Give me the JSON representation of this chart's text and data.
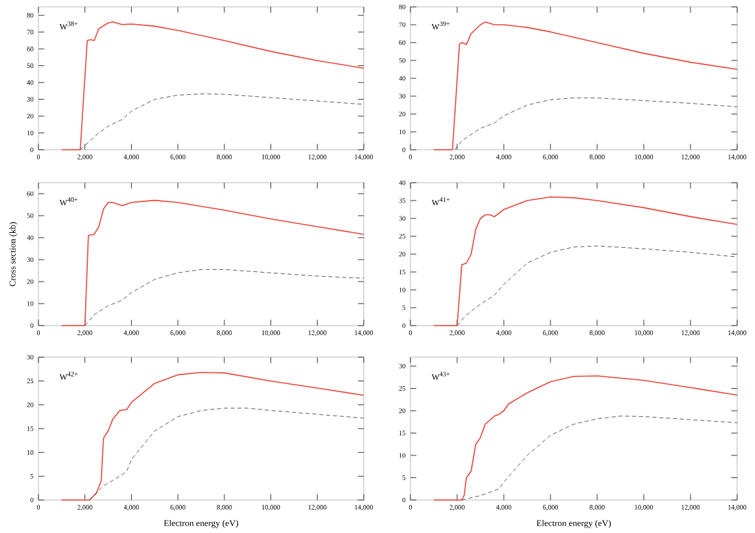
{
  "chart_data": [
    {
      "type": "line",
      "annotations": [
        "W$^{38+}$"
      ],
      "xlim": [
        0,
        14000
      ],
      "ylim": [
        0,
        85
      ],
      "xticks": [
        0,
        {
          "value": 2000,
          "label": "2,000"
        },
        {
          "value": 4000,
          "label": "4,000"
        },
        {
          "value": 6000,
          "label": "6,000"
        },
        {
          "value": 8000,
          "label": "8,000"
        },
        {
          "value": 10000,
          "label": "10,000"
        },
        {
          "value": 12000,
          "label": "12,000"
        },
        {
          "value": 14000,
          "label": "14,000"
        }
      ],
      "yticks": [
        0,
        10,
        20,
        30,
        40,
        50,
        60,
        70,
        80
      ],
      "series": [
        {
          "color": "#e8473c",
          "line_style": "solid",
          "x": [
            1000,
            1800,
            2100,
            2250,
            2400,
            2600,
            3000,
            3200,
            3600,
            4000,
            5000,
            6000,
            8000,
            10000,
            12000,
            14000
          ],
          "values": [
            0,
            0,
            65,
            65.5,
            65,
            72,
            75.5,
            76,
            74.5,
            74.8,
            73.5,
            71,
            65,
            58.5,
            53,
            48.5
          ]
        },
        {
          "color": "#333333",
          "line_style": "dashed",
          "x": [
            1800,
            2200,
            2600,
            3000,
            3600,
            4000,
            5000,
            6000,
            7000,
            8000,
            10000,
            12000,
            14000
          ],
          "values": [
            0,
            5,
            10,
            14,
            18,
            23,
            30,
            32.5,
            33.2,
            33,
            31,
            29,
            27
          ]
        }
      ]
    },
    {
      "type": "line",
      "annotations": [
        "W$^{39+}$"
      ],
      "xlim": [
        0,
        14000
      ],
      "ylim": [
        0,
        80
      ],
      "xticks": [
        0,
        {
          "value": 2000,
          "label": "2,000"
        },
        {
          "value": 4000,
          "label": "4,000"
        },
        {
          "value": 6000,
          "label": "6,000"
        },
        {
          "value": 8000,
          "label": "8,000"
        },
        {
          "value": 10000,
          "label": "10,000"
        },
        {
          "value": 12000,
          "label": "12,000"
        },
        {
          "value": 14000,
          "label": "14,000"
        }
      ],
      "yticks": [
        0,
        10,
        20,
        30,
        40,
        50,
        60,
        70,
        80
      ],
      "series": [
        {
          "color": "#e8473c",
          "line_style": "solid",
          "x": [
            1000,
            1800,
            2100,
            2200,
            2400,
            2600,
            3000,
            3200,
            3600,
            4000,
            5000,
            6000,
            8000,
            10000,
            12000,
            14000
          ],
          "values": [
            0,
            0,
            59,
            60,
            59,
            65,
            70,
            71.5,
            70,
            70,
            68.5,
            66,
            60,
            54,
            49,
            45
          ]
        },
        {
          "color": "#333333",
          "line_style": "dashed",
          "x": [
            1900,
            2200,
            3000,
            3600,
            4000,
            5000,
            6000,
            7000,
            8000,
            10000,
            12000,
            14000
          ],
          "values": [
            0,
            5,
            12,
            15,
            19,
            25,
            28,
            29,
            29,
            27.5,
            26,
            24
          ]
        }
      ]
    },
    {
      "type": "line",
      "annotations": [
        "W$^{40+}$"
      ],
      "ylabel": "Cross section (kb)",
      "xlim": [
        0,
        14000
      ],
      "ylim": [
        0,
        65
      ],
      "xticks": [
        0,
        {
          "value": 2000,
          "label": "2,000"
        },
        {
          "value": 4000,
          "label": "4,000"
        },
        {
          "value": 6000,
          "label": "6,000"
        },
        {
          "value": 8000,
          "label": "8,000"
        },
        {
          "value": 10000,
          "label": "10,000"
        },
        {
          "value": 12000,
          "label": "12,000"
        },
        {
          "value": 14000,
          "label": "14,000"
        }
      ],
      "yticks": [
        0,
        10,
        20,
        30,
        40,
        50,
        60
      ],
      "series": [
        {
          "color": "#e8473c",
          "line_style": "solid",
          "x": [
            1000,
            2000,
            2150,
            2400,
            2600,
            2800,
            3000,
            3200,
            3600,
            4000,
            5000,
            6000,
            8000,
            10000,
            12000,
            14000
          ],
          "values": [
            0,
            0,
            41,
            41.5,
            45,
            53,
            56,
            56,
            54.5,
            56,
            57,
            56,
            52.5,
            48.5,
            45,
            41.5
          ]
        },
        {
          "color": "#333333",
          "line_style": "dashed",
          "x": [
            2000,
            2400,
            3000,
            3600,
            4000,
            5000,
            6000,
            7000,
            8000,
            10000,
            12000,
            14000
          ],
          "values": [
            0,
            5,
            9,
            11.5,
            15,
            21,
            24,
            25.5,
            25.5,
            24,
            22.5,
            21.5
          ]
        }
      ]
    },
    {
      "type": "line",
      "annotations": [
        "W$^{41+}$"
      ],
      "xlim": [
        0,
        14000
      ],
      "ylim": [
        0,
        40
      ],
      "xticks": [
        0,
        {
          "value": 2000,
          "label": "2,000"
        },
        {
          "value": 4000,
          "label": "4,000"
        },
        {
          "value": 6000,
          "label": "6,000"
        },
        {
          "value": 8000,
          "label": "8,000"
        },
        {
          "value": 10000,
          "label": "10,000"
        },
        {
          "value": 12000,
          "label": "12,000"
        },
        {
          "value": 14000,
          "label": "14,000"
        }
      ],
      "yticks": [
        0,
        5,
        10,
        15,
        20,
        25,
        30,
        35,
        40
      ],
      "series": [
        {
          "color": "#e8473c",
          "line_style": "solid",
          "x": [
            1000,
            2000,
            2200,
            2400,
            2600,
            2800,
            3000,
            3200,
            3400,
            3600,
            4000,
            5000,
            6000,
            7000,
            8000,
            10000,
            12000,
            14000
          ],
          "values": [
            0,
            0,
            17,
            17.5,
            20,
            27,
            30,
            31,
            31,
            30.5,
            32.5,
            35,
            36,
            35.8,
            35,
            33,
            30.5,
            28.3
          ]
        },
        {
          "color": "#333333",
          "line_style": "dashed",
          "x": [
            2000,
            2400,
            3000,
            3600,
            4000,
            5000,
            6000,
            7000,
            8000,
            10000,
            12000,
            14000
          ],
          "values": [
            0,
            3,
            6,
            8.5,
            11.5,
            17.5,
            20.5,
            22,
            22.3,
            21.5,
            20.5,
            19.2
          ]
        }
      ]
    },
    {
      "type": "line",
      "annotations": [
        "W$^{42+}$"
      ],
      "xlabel": "Electron energy (eV)",
      "xlim": [
        0,
        14000
      ],
      "ylim": [
        0,
        30
      ],
      "xticks": [
        0,
        {
          "value": 2000,
          "label": "2,000"
        },
        {
          "value": 4000,
          "label": "4,000"
        },
        {
          "value": 6000,
          "label": "6,000"
        },
        {
          "value": 8000,
          "label": "8,000"
        },
        {
          "value": 10000,
          "label": "10,000"
        },
        {
          "value": 12000,
          "label": "12,000"
        },
        {
          "value": 14000,
          "label": "14,000"
        }
      ],
      "yticks": [
        0,
        5,
        10,
        15,
        20,
        25,
        30
      ],
      "series": [
        {
          "color": "#e8473c",
          "line_style": "solid",
          "x": [
            1000,
            2200,
            2500,
            2700,
            2800,
            3000,
            3200,
            3500,
            3800,
            4000,
            5000,
            6000,
            7000,
            8000,
            10000,
            12000,
            14000
          ],
          "values": [
            0,
            0,
            1.5,
            4,
            13,
            14.5,
            17,
            18.8,
            19,
            20.5,
            24.5,
            26.3,
            26.8,
            26.7,
            25,
            23.5,
            22
          ]
        },
        {
          "color": "#333333",
          "line_style": "dashed",
          "x": [
            2200,
            2800,
            3500,
            3800,
            4000,
            5000,
            6000,
            7000,
            8000,
            9000,
            10000,
            12000,
            14000
          ],
          "values": [
            0,
            3,
            5,
            6,
            8.5,
            14.5,
            17.5,
            18.8,
            19.3,
            19.3,
            18.8,
            18,
            17.2
          ]
        }
      ]
    },
    {
      "type": "line",
      "annotations": [
        "W$^{43+}$"
      ],
      "xlabel": "Electron energy (eV)",
      "xlim": [
        0,
        14000
      ],
      "ylim": [
        0,
        32
      ],
      "xticks": [
        0,
        {
          "value": 2000,
          "label": "2,000"
        },
        {
          "value": 4000,
          "label": "4,000"
        },
        {
          "value": 6000,
          "label": "6,000"
        },
        {
          "value": 8000,
          "label": "8,000"
        },
        {
          "value": 10000,
          "label": "10,000"
        },
        {
          "value": 12000,
          "label": "12,000"
        },
        {
          "value": 14000,
          "label": "14,000"
        }
      ],
      "yticks": [
        0,
        5,
        10,
        15,
        20,
        25,
        30
      ],
      "series": [
        {
          "color": "#e8473c",
          "line_style": "solid",
          "x": [
            1000,
            2200,
            2300,
            2400,
            2600,
            2800,
            3000,
            3200,
            3600,
            3800,
            4000,
            4200,
            5000,
            6000,
            7000,
            8000,
            10000,
            12000,
            14000
          ],
          "values": [
            0,
            0,
            1,
            5,
            6.5,
            12.5,
            14,
            17,
            18.8,
            19.2,
            20,
            21.5,
            24,
            26.5,
            27.7,
            27.8,
            26.8,
            25.2,
            23.5
          ]
        },
        {
          "color": "#333333",
          "line_style": "dashed",
          "x": [
            2200,
            3000,
            3800,
            4000,
            5000,
            6000,
            7000,
            8000,
            9000,
            10000,
            12000,
            14000
          ],
          "values": [
            0,
            1,
            2.5,
            4,
            10,
            14.5,
            17,
            18.2,
            18.8,
            18.7,
            18,
            17.3
          ]
        }
      ]
    }
  ]
}
